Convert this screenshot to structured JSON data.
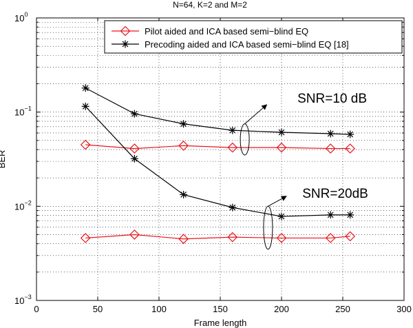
{
  "chart_data": {
    "type": "line",
    "title": "N=64, K=2 and M=2",
    "xlabel": "Frame length",
    "ylabel": "BER",
    "xlim": [
      0,
      300
    ],
    "ylim": [
      0.001,
      1
    ],
    "yscale": "log",
    "grid": true,
    "legend_position": "top",
    "x_ticks": [
      0,
      50,
      100,
      150,
      200,
      250,
      300
    ],
    "y_ticks": [
      {
        "value": 1,
        "base": "10",
        "exp": "0"
      },
      {
        "value": 0.1,
        "base": "10",
        "exp": "−1"
      },
      {
        "value": 0.01,
        "base": "10",
        "exp": "−2"
      },
      {
        "value": 0.001,
        "base": "10",
        "exp": "−3"
      }
    ],
    "legend": [
      {
        "label": "Pilot aided and ICA based semi−blind EQ",
        "color": "#e8161b",
        "marker": "diamond"
      },
      {
        "label": "Precoding aided and ICA based semi−blind EQ [18]",
        "color": "#000000",
        "marker": "star"
      }
    ],
    "series": [
      {
        "color": "#e8161b",
        "marker": "diamond",
        "x": [
          40,
          80,
          120,
          160,
          200,
          240,
          256
        ],
        "y": [
          0.045,
          0.041,
          0.044,
          0.042,
          0.042,
          0.041,
          0.041
        ]
      },
      {
        "color": "#000000",
        "marker": "star",
        "x": [
          40,
          80,
          120,
          160,
          200,
          240,
          256
        ],
        "y": [
          0.18,
          0.096,
          0.075,
          0.064,
          0.061,
          0.059,
          0.058
        ]
      },
      {
        "color": "#e8161b",
        "marker": "diamond",
        "x": [
          40,
          80,
          120,
          160,
          200,
          240,
          256
        ],
        "y": [
          0.0046,
          0.005,
          0.0045,
          0.0047,
          0.0046,
          0.0046,
          0.0048
        ]
      },
      {
        "color": "#000000",
        "marker": "star",
        "x": [
          40,
          80,
          120,
          160,
          200,
          240,
          256
        ],
        "y": [
          0.115,
          0.032,
          0.0133,
          0.0097,
          0.0078,
          0.0081,
          0.0081
        ]
      }
    ],
    "annotations": [
      {
        "text": "SNR=10 dB",
        "x": 213,
        "y": 0.142,
        "ellipse_x": 170,
        "ellipse_y": [
          0.035,
          0.075
        ],
        "arrow_to_x": 188,
        "arrow_to_y": 0.12
      },
      {
        "text": "SNR=20dB",
        "x": 217,
        "y": 0.0138,
        "ellipse_x": 189,
        "ellipse_y": [
          0.0035,
          0.01
        ],
        "arrow_to_x": 204,
        "arrow_to_y": 0.0128
      }
    ]
  }
}
